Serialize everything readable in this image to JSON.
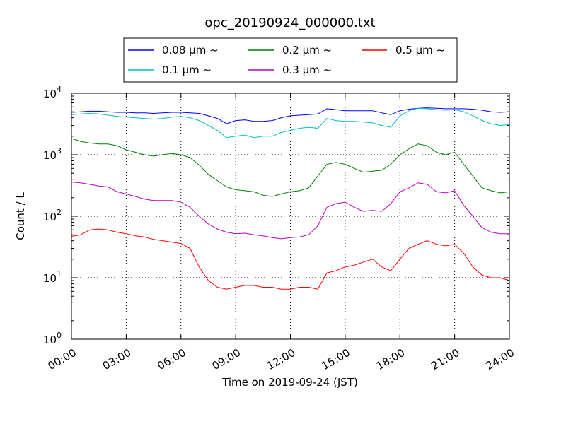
{
  "chart_data": {
    "type": "line",
    "title": "opc_20190924_000000.txt",
    "xlabel": "Time on 2019-09-24 (JST)",
    "ylabel": "Count / L",
    "yscale": "log",
    "ylim": [
      1,
      10000
    ],
    "xlim": [
      "00:00",
      "24:00"
    ],
    "grid": true,
    "legend_position": "top-center",
    "x_ticks": [
      "00:00",
      "03:00",
      "06:00",
      "09:00",
      "12:00",
      "15:00",
      "18:00",
      "21:00",
      "24:00"
    ],
    "y_ticks": [
      {
        "base": "10",
        "exp": "0"
      },
      {
        "base": "10",
        "exp": "1"
      },
      {
        "base": "10",
        "exp": "2"
      },
      {
        "base": "10",
        "exp": "3"
      },
      {
        "base": "10",
        "exp": "4"
      }
    ],
    "x": [
      "00:00",
      "00:30",
      "01:00",
      "01:30",
      "02:00",
      "02:30",
      "03:00",
      "03:30",
      "04:00",
      "04:30",
      "05:00",
      "05:30",
      "06:00",
      "06:30",
      "07:00",
      "07:30",
      "08:00",
      "08:30",
      "09:00",
      "09:30",
      "10:00",
      "10:30",
      "11:00",
      "11:30",
      "12:00",
      "12:30",
      "13:00",
      "13:30",
      "14:00",
      "14:30",
      "15:00",
      "15:30",
      "16:00",
      "16:30",
      "17:00",
      "17:30",
      "18:00",
      "18:30",
      "19:00",
      "19:30",
      "20:00",
      "20:30",
      "21:00",
      "21:30",
      "22:00",
      "22:30",
      "23:00",
      "23:30",
      "24:00"
    ],
    "series": [
      {
        "name": "0.08 μm ~",
        "color": "#0000ff",
        "values": [
          4900,
          5000,
          5100,
          5100,
          5000,
          4900,
          4900,
          4800,
          4800,
          4700,
          4800,
          4900,
          4900,
          4800,
          4700,
          4300,
          3900,
          3200,
          3600,
          3700,
          3500,
          3500,
          3600,
          4000,
          4300,
          4400,
          4500,
          4600,
          5600,
          5400,
          5200,
          5200,
          5200,
          5200,
          4800,
          4500,
          5200,
          5500,
          5700,
          5800,
          5700,
          5600,
          5600,
          5600,
          5500,
          5300,
          5000,
          4900,
          5000
        ]
      },
      {
        "name": "0.1 μm ~",
        "color": "#00bfbf",
        "values": [
          4500,
          4600,
          4700,
          4600,
          4400,
          4200,
          4100,
          4000,
          3900,
          3800,
          3900,
          4100,
          4200,
          4000,
          3600,
          3000,
          2500,
          1900,
          2000,
          2100,
          1900,
          2000,
          2000,
          2300,
          2500,
          2700,
          2800,
          2700,
          3900,
          3600,
          3500,
          3500,
          3400,
          3300,
          3000,
          2800,
          4300,
          5200,
          5700,
          5600,
          5400,
          5300,
          5400,
          5000,
          4300,
          3600,
          3200,
          3000,
          3100
        ]
      },
      {
        "name": "0.2 μm ~",
        "color": "#008000",
        "values": [
          1850,
          1650,
          1550,
          1500,
          1500,
          1400,
          1200,
          1100,
          1000,
          950,
          1000,
          1050,
          1000,
          900,
          680,
          480,
          380,
          300,
          270,
          260,
          250,
          220,
          210,
          230,
          250,
          260,
          290,
          450,
          700,
          750,
          700,
          600,
          520,
          540,
          560,
          700,
          1000,
          1250,
          1500,
          1400,
          1100,
          1000,
          1100,
          700,
          450,
          290,
          260,
          240,
          250
        ]
      },
      {
        "name": "0.3 μm ~",
        "color": "#bf00bf",
        "values": [
          360,
          350,
          330,
          310,
          300,
          250,
          230,
          210,
          190,
          180,
          180,
          180,
          170,
          140,
          100,
          75,
          62,
          55,
          52,
          53,
          50,
          48,
          45,
          43,
          45,
          46,
          50,
          70,
          140,
          160,
          170,
          140,
          120,
          125,
          120,
          160,
          250,
          290,
          350,
          330,
          250,
          240,
          260,
          150,
          100,
          65,
          55,
          52,
          52
        ]
      },
      {
        "name": "0.5 μm ~",
        "color": "#ff0000",
        "values": [
          47,
          50,
          60,
          62,
          60,
          55,
          52,
          48,
          46,
          42,
          40,
          38,
          36,
          30,
          15,
          9,
          7,
          6.5,
          7,
          7.5,
          7.5,
          7,
          7,
          6.5,
          6.5,
          7,
          7,
          6.5,
          12,
          13,
          15,
          16,
          18,
          20,
          15,
          13,
          20,
          30,
          35,
          40,
          35,
          33,
          35,
          25,
          15,
          11,
          10,
          10,
          9
        ]
      }
    ]
  }
}
